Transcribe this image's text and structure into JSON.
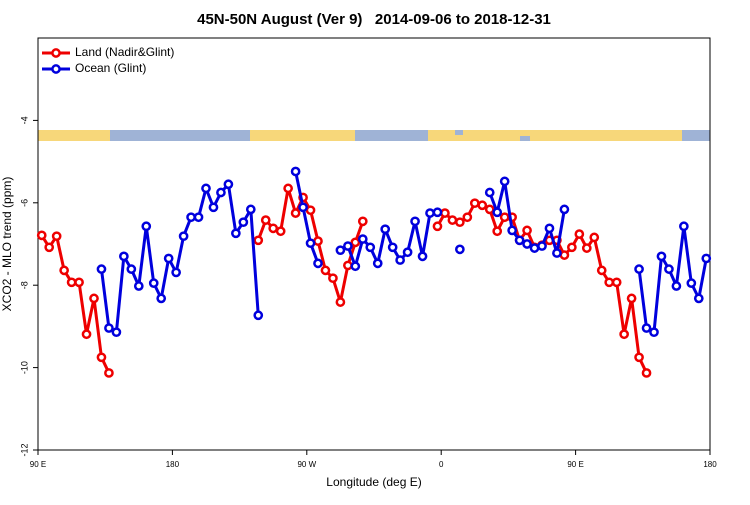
{
  "chart_data": {
    "type": "line",
    "title": "45N-50N August (Ver 9)   2014-09-06 to 2018-12-31",
    "x_label": "Longitude (deg E)",
    "y_label": "XCO2 - MLO trend (ppm)",
    "xlim": [
      90,
      540
    ],
    "xticks": [
      {
        "value": 90,
        "label": "90 E"
      },
      180,
      {
        "value": 270,
        "label": "90 W"
      },
      {
        "value": 360,
        "label": "0"
      },
      {
        "value": 450,
        "label": "90 E"
      },
      {
        "value": 540,
        "label": "180"
      }
    ],
    "ylim": [
      -12,
      -2
    ],
    "yticks": [
      -12,
      -10,
      -8,
      -6,
      -4
    ],
    "grid": false,
    "legend": "upper left",
    "series": [
      {
        "name": "Land (Nadir&Glint)",
        "color": "#ee0000",
        "x": [
          92.5,
          97.5,
          102.5,
          107.5,
          112.5,
          117.5,
          122.5,
          127.5,
          132.5,
          137.5,
          187.5,
          237.5,
          242.5,
          247.5,
          252.5,
          257.5,
          262.5,
          267.5,
          272.5,
          277.5,
          282.5,
          287.5,
          292.5,
          297.5,
          302.5,
          307.5,
          330,
          357.5,
          362.5,
          367.5,
          372.5,
          377.5,
          382.5,
          387.5,
          392.5,
          397.5,
          402.5,
          407.5,
          412.5,
          417.5,
          422.5,
          427.5,
          432.5,
          437.5,
          442.5,
          447.5,
          452.5,
          457.5,
          462.5,
          467.5,
          472.5,
          477.5,
          482.5,
          487.5,
          492.5,
          497.5
        ],
        "values": [
          -6.79,
          -7.08,
          -6.81,
          -7.64,
          -7.93,
          -7.93,
          -9.19,
          -8.32,
          -9.75,
          -10.13,
          null,
          -6.91,
          -6.42,
          -6.62,
          -6.69,
          -5.65,
          -6.25,
          -5.87,
          -6.18,
          -6.93,
          -7.64,
          -7.83,
          -8.41,
          -7.52,
          -6.96,
          -6.45,
          null,
          -6.57,
          -6.25,
          -6.42,
          -6.47,
          -6.35,
          -6.01,
          -6.06,
          -6.16,
          -6.69,
          -6.35,
          -6.35,
          -6.91,
          -6.67,
          -7.08,
          -7.03,
          -6.91,
          -6.91,
          -7.27,
          -7.08,
          -6.76,
          -7.1,
          -6.84,
          -7.64,
          -7.93,
          -7.93,
          -9.19,
          -8.32,
          -9.75,
          -10.13
        ]
      },
      {
        "name": "Ocean (Glint)",
        "color": "#0000dd",
        "x": [
          132.5,
          137.5,
          142.5,
          147.5,
          152.5,
          157.5,
          162.5,
          167.5,
          172.5,
          177.5,
          182.5,
          187.5,
          192.5,
          197.5,
          202.5,
          207.5,
          212.5,
          217.5,
          222.5,
          227.5,
          232.5,
          237.5,
          250,
          262.5,
          267.5,
          272.5,
          277.5,
          285,
          292.5,
          297.5,
          302.5,
          307.5,
          312.5,
          317.5,
          322.5,
          327.5,
          332.5,
          337.5,
          342.5,
          347.5,
          352.5,
          357.5,
          365,
          372.5,
          380,
          392.5,
          397.5,
          402.5,
          407.5,
          412.5,
          417.5,
          422.5,
          427.5,
          432.5,
          437.5,
          442.5,
          465,
          492.5,
          497.5,
          502.5,
          507.5,
          512.5,
          517.5,
          522.5,
          527.5,
          532.5,
          537.5
        ],
        "values": [
          -7.61,
          -9.04,
          -9.14,
          -7.3,
          -7.61,
          -8.02,
          -6.57,
          -7.95,
          -8.32,
          -7.35,
          -7.69,
          -6.81,
          -6.35,
          -6.35,
          -5.65,
          -6.11,
          -5.75,
          -5.55,
          -6.74,
          -6.47,
          -6.16,
          -8.73,
          null,
          -5.24,
          -6.11,
          -6.98,
          -7.47,
          null,
          -7.15,
          -7.05,
          -7.54,
          -6.88,
          -7.08,
          -7.47,
          -6.64,
          -7.08,
          -7.39,
          -7.2,
          -6.45,
          -7.3,
          -6.25,
          -6.23,
          null,
          -7.13,
          null,
          -5.75,
          -6.23,
          -5.48,
          -6.67,
          -6.91,
          -7.0,
          -7.1,
          -7.05,
          -6.62,
          -7.22,
          -6.16,
          null,
          -7.61,
          -9.04,
          -9.14,
          -7.3,
          -7.61,
          -8.02,
          -6.57,
          -7.95,
          -8.32,
          -7.35
        ]
      }
    ]
  }
}
